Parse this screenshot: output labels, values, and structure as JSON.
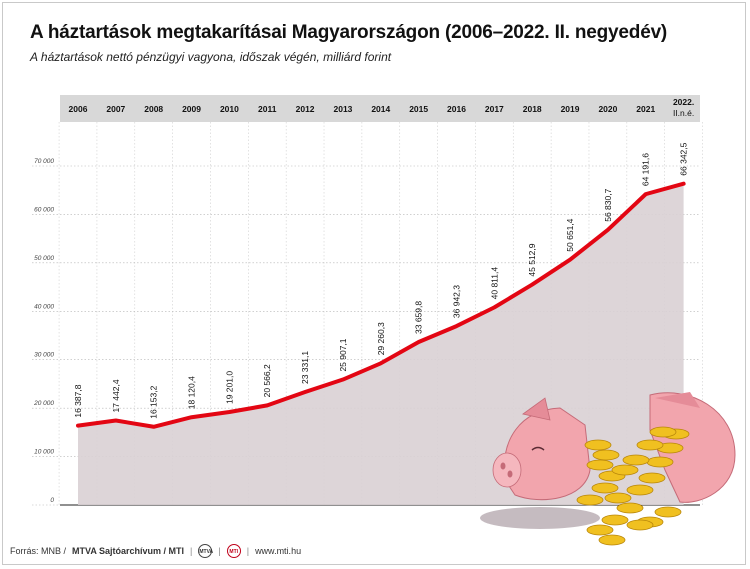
{
  "header": {
    "title": "A háztartások megtakarításai Magyarországon (2006–2022. II. negyedév)",
    "subtitle": "A háztartások nettó pénzügyi vagyona, időszak végén, milliárd forint"
  },
  "footer": {
    "source_prefix": "Forrás: MNB /",
    "source_bold": "MTVA Sajtóarchívum / MTI",
    "badge_left": "MTVA",
    "badge_right": "MTI",
    "url": "www.mti.hu"
  },
  "colors": {
    "line": "#e30613",
    "area": "#d9d0d4",
    "header_band": "#d8d8d8",
    "grid": "#b5b5b5",
    "pig": "#f2a5ad",
    "coin": "#f0c020"
  },
  "illustration": {
    "name": "broken-piggy-bank-with-coins"
  },
  "chart_data": {
    "type": "area",
    "title": "A háztartások megtakarításai Magyarországon (2006–2022. II. negyedév)",
    "subtitle": "A háztartások nettó pénzügyi vagyona, időszak végén, milliárd forint",
    "categories": [
      "2006",
      "2007",
      "2008",
      "2009",
      "2010",
      "2011",
      "2012",
      "2013",
      "2014",
      "2015",
      "2016",
      "2017",
      "2018",
      "2019",
      "2020",
      "2021",
      "2022. II.n.é."
    ],
    "series": [
      {
        "values": [
          16387.8,
          17442.4,
          16153.2,
          18120.4,
          19201.0,
          20566.2,
          23331.1,
          25907.1,
          29260.3,
          33659.8,
          36942.3,
          40811.4,
          45512.9,
          50651.4,
          56830.7,
          64191.6,
          66342.5
        ],
        "labels": [
          "16 387,8",
          "17 442,4",
          "16 153,2",
          "18 120,4",
          "19 201,0",
          "20 566,2",
          "23 331,1",
          "25 907,1",
          "29 260,3",
          "33 659,8",
          "36 942,3",
          "40 811,4",
          "45 512,9",
          "50 651,4",
          "56 830,7",
          "64 191,6",
          "66 342,5"
        ]
      }
    ],
    "y_ticks": [
      0,
      10000,
      20000,
      30000,
      40000,
      50000,
      60000,
      70000
    ],
    "y_tick_labels": [
      "0",
      "10 000",
      "20 000",
      "30 000",
      "40 000",
      "50 000",
      "60 000",
      "70 000"
    ],
    "ylim": [
      0,
      70000
    ],
    "grid": true,
    "xlabel": "",
    "ylabel": ""
  }
}
